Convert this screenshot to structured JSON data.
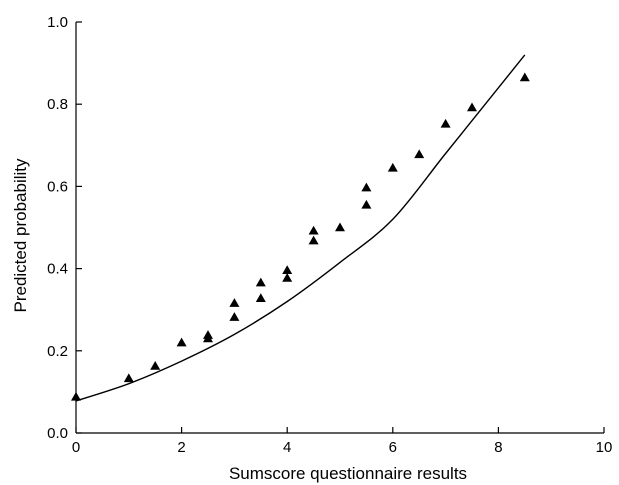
{
  "chart_data": {
    "type": "scatter",
    "xlabel": "Sumscore questionnaire results",
    "ylabel": "Predicted probability",
    "xlim": [
      0,
      10
    ],
    "ylim": [
      0,
      1.0
    ],
    "x_ticks": [
      0,
      2,
      4,
      6,
      8,
      10
    ],
    "y_ticks": [
      0.0,
      0.2,
      0.4,
      0.6,
      0.8,
      1.0
    ],
    "x_tick_labels": [
      "0",
      "2",
      "4",
      "6",
      "8",
      "10"
    ],
    "y_tick_labels": [
      "0.0",
      "0.2",
      "0.4",
      "0.6",
      "0.8",
      "1.0"
    ],
    "grid": false,
    "series": [
      {
        "type": "scatter",
        "marker": "triangle",
        "color": "#000000",
        "points": [
          [
            0,
            0.088
          ],
          [
            1,
            0.133
          ],
          [
            1.5,
            0.163
          ],
          [
            2,
            0.22
          ],
          [
            2.5,
            0.23
          ],
          [
            2.5,
            0.238
          ],
          [
            3,
            0.282
          ],
          [
            3,
            0.316
          ],
          [
            3.5,
            0.328
          ],
          [
            3.5,
            0.366
          ],
          [
            4,
            0.377
          ],
          [
            4,
            0.396
          ],
          [
            4.5,
            0.468
          ],
          [
            4.5,
            0.492
          ],
          [
            5,
            0.5
          ],
          [
            5.5,
            0.555
          ],
          [
            5.5,
            0.597
          ],
          [
            6,
            0.645
          ],
          [
            6.5,
            0.678
          ],
          [
            7,
            0.752
          ],
          [
            7.5,
            0.792
          ],
          [
            8.5,
            0.865
          ]
        ]
      },
      {
        "type": "line",
        "color": "#000000",
        "points": [
          [
            0,
            0.078
          ],
          [
            1,
            0.12
          ],
          [
            2,
            0.175
          ],
          [
            3,
            0.24
          ],
          [
            4,
            0.32
          ],
          [
            5,
            0.415
          ],
          [
            6,
            0.52
          ],
          [
            7,
            0.68
          ],
          [
            8,
            0.84
          ],
          [
            8.5,
            0.92
          ]
        ]
      }
    ]
  }
}
